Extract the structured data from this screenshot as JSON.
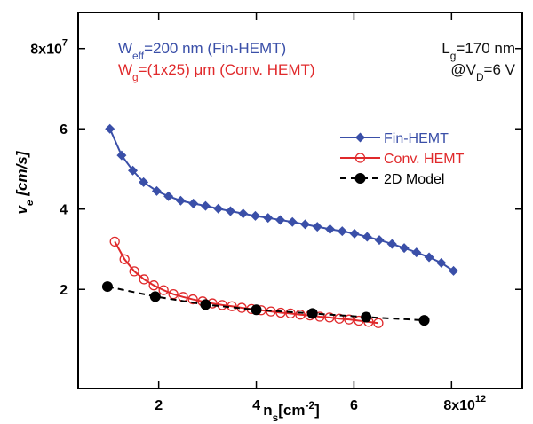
{
  "chart_data": {
    "type": "scatter",
    "xlim": [
      0.35,
      9.45
    ],
    "ylim": [
      -0.47,
      8.9
    ],
    "xticks": [
      2,
      4,
      6,
      {
        "value": 8,
        "label": "8x10"
      }
    ],
    "xtick_exponent": "12",
    "yticks": [
      2,
      4,
      6,
      {
        "value": 8,
        "label": "8x10"
      }
    ],
    "ytick_exponent": "7",
    "xlabel": [
      {
        "t": "n"
      },
      {
        "t": "s",
        "shift": "sub"
      },
      {
        "t": "[cm"
      },
      {
        "t": "-2",
        "shift": "sup"
      },
      {
        "t": "]"
      }
    ],
    "ylabel": [
      {
        "t": "v"
      },
      {
        "t": "e",
        "shift": "sub"
      },
      {
        "t": " [cm/s]"
      }
    ],
    "annotations": [
      {
        "color": "#3a4fa8",
        "parts": [
          {
            "t": "W"
          },
          {
            "t": "eff",
            "shift": "sub"
          },
          {
            "t": "=200 nm (Fin-HEMT)"
          }
        ]
      },
      {
        "color": "#e0292b",
        "parts": [
          {
            "t": "W"
          },
          {
            "t": "g",
            "shift": "sub"
          },
          {
            "t": "=(1x25) μm (Conv. HEMT)"
          }
        ]
      },
      {
        "color": "#111111",
        "parts": [
          {
            "t": "L"
          },
          {
            "t": "g",
            "shift": "sub"
          },
          {
            "t": "=170 nm"
          }
        ]
      },
      {
        "color": "#111111",
        "parts": [
          {
            "t": "@V"
          },
          {
            "t": "D",
            "shift": "sub"
          },
          {
            "t": "=6 V"
          }
        ]
      }
    ],
    "series": [
      {
        "name": "Fin-HEMT",
        "color": "#3a4fa8",
        "marker": "diamond",
        "line": "solid",
        "x": [
          1.0,
          1.24,
          1.47,
          1.69,
          1.96,
          2.2,
          2.45,
          2.71,
          2.96,
          3.22,
          3.47,
          3.73,
          3.98,
          4.24,
          4.49,
          4.74,
          5.0,
          5.25,
          5.51,
          5.76,
          6.01,
          6.27,
          6.52,
          6.78,
          7.03,
          7.28,
          7.54,
          7.79,
          8.04
        ],
        "values": [
          6.0,
          5.34,
          4.96,
          4.67,
          4.45,
          4.32,
          4.21,
          4.14,
          4.08,
          4.01,
          3.95,
          3.89,
          3.83,
          3.78,
          3.73,
          3.68,
          3.62,
          3.56,
          3.5,
          3.45,
          3.39,
          3.31,
          3.23,
          3.13,
          3.03,
          2.92,
          2.8,
          2.66,
          2.46
        ]
      },
      {
        "name": "Conv. HEMT",
        "color": "#e0292b",
        "marker": "open-circle",
        "line": "solid",
        "x": [
          1.1,
          1.3,
          1.5,
          1.7,
          1.9,
          2.1,
          2.3,
          2.5,
          2.7,
          2.9,
          3.1,
          3.3,
          3.5,
          3.7,
          3.9,
          4.1,
          4.3,
          4.5,
          4.7,
          4.9,
          5.1,
          5.3,
          5.5,
          5.7,
          5.9,
          6.1,
          6.3,
          6.5
        ],
        "values": [
          3.19,
          2.75,
          2.45,
          2.25,
          2.1,
          1.98,
          1.88,
          1.81,
          1.75,
          1.7,
          1.65,
          1.61,
          1.58,
          1.54,
          1.51,
          1.48,
          1.45,
          1.42,
          1.4,
          1.37,
          1.35,
          1.32,
          1.3,
          1.27,
          1.25,
          1.22,
          1.19,
          1.16
        ]
      },
      {
        "name": "2D Model",
        "color": "#000000",
        "marker": "dot",
        "line": "dashed",
        "x": [
          0.95,
          1.93,
          2.96,
          4.0,
          5.15,
          6.25,
          7.44
        ],
        "values": [
          2.07,
          1.82,
          1.62,
          1.49,
          1.4,
          1.31,
          1.23
        ]
      }
    ]
  }
}
